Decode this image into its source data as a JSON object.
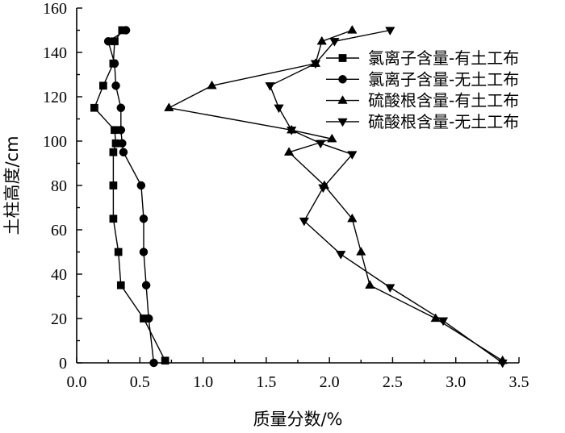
{
  "chart_data": {
    "type": "line",
    "title": "",
    "xlabel": "质量分数/%",
    "ylabel": "土柱高度/cm",
    "xlim": [
      0,
      3.5
    ],
    "ylim": [
      0,
      160
    ],
    "xticks": [
      "0.0",
      "0.5",
      "1.0",
      "1.5",
      "2.0",
      "2.5",
      "3.0",
      "3.5"
    ],
    "yticks": [
      "0",
      "20",
      "40",
      "60",
      "80",
      "100",
      "120",
      "140",
      "160"
    ],
    "grid": false,
    "legend_position": "right",
    "series": [
      {
        "name": "氯离子含量-有土工布",
        "marker": "square",
        "points": [
          [
            0.7,
            1
          ],
          [
            0.53,
            20
          ],
          [
            0.35,
            35
          ],
          [
            0.33,
            50
          ],
          [
            0.29,
            65
          ],
          [
            0.29,
            80
          ],
          [
            0.29,
            95
          ],
          [
            0.31,
            99
          ],
          [
            0.3,
            105
          ],
          [
            0.14,
            115
          ],
          [
            0.21,
            125
          ],
          [
            0.29,
            135
          ],
          [
            0.3,
            145
          ],
          [
            0.36,
            150
          ]
        ]
      },
      {
        "name": "氯离子含量-无土工布",
        "marker": "circle",
        "points": [
          [
            0.61,
            0
          ],
          [
            0.57,
            20
          ],
          [
            0.55,
            35
          ],
          [
            0.53,
            50
          ],
          [
            0.53,
            65
          ],
          [
            0.51,
            80
          ],
          [
            0.37,
            95
          ],
          [
            0.36,
            99
          ],
          [
            0.35,
            105
          ],
          [
            0.35,
            115
          ],
          [
            0.31,
            125
          ],
          [
            0.3,
            135
          ],
          [
            0.25,
            145
          ],
          [
            0.39,
            150
          ]
        ]
      },
      {
        "name": "硫酸根含量-有土工布",
        "marker": "triangle-up",
        "points": [
          [
            3.37,
            1
          ],
          [
            2.84,
            20
          ],
          [
            2.32,
            35
          ],
          [
            2.25,
            50
          ],
          [
            2.18,
            65
          ],
          [
            1.96,
            80
          ],
          [
            1.68,
            95
          ],
          [
            2.02,
            101
          ],
          [
            1.7,
            105
          ],
          [
            0.73,
            115
          ],
          [
            1.07,
            125
          ],
          [
            1.89,
            135
          ],
          [
            1.94,
            145
          ],
          [
            2.18,
            150
          ]
        ]
      },
      {
        "name": "硫酸根含量-无土工布",
        "marker": "triangle-down",
        "points": [
          [
            3.37,
            0
          ],
          [
            2.9,
            19
          ],
          [
            2.48,
            34
          ],
          [
            2.09,
            49
          ],
          [
            1.8,
            64
          ],
          [
            1.95,
            79
          ],
          [
            2.18,
            94
          ],
          [
            1.93,
            99
          ],
          [
            1.7,
            105
          ],
          [
            1.6,
            115
          ],
          [
            1.53,
            125
          ],
          [
            1.89,
            135
          ],
          [
            2.04,
            145
          ],
          [
            2.48,
            150
          ]
        ]
      }
    ]
  }
}
